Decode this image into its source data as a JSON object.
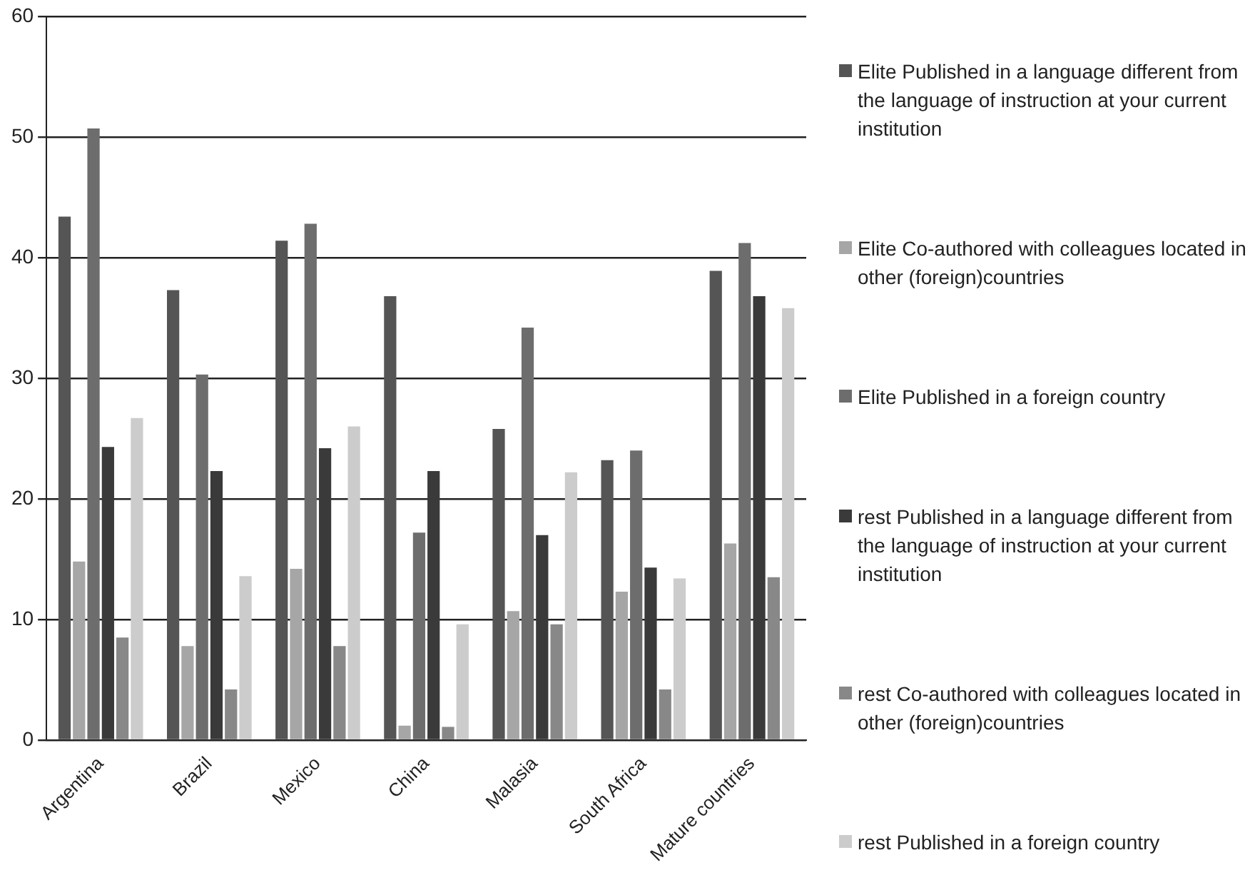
{
  "chart_data": {
    "type": "bar",
    "categories": [
      "Argentina",
      "Brazil",
      "Mexico",
      "China",
      "Malasia",
      "South Africa",
      "Mature countries"
    ],
    "series": [
      {
        "name": "Elite Published in a language different from the language of instruction at your current institution",
        "color": "#555555",
        "values": [
          43.4,
          37.3,
          41.4,
          36.8,
          25.8,
          23.2,
          38.9
        ]
      },
      {
        "name": "Elite Co-authored with colleagues located in other (foreign)countries",
        "color": "#a6a6a6",
        "values": [
          14.8,
          7.8,
          14.2,
          1.2,
          10.7,
          12.3,
          16.3
        ]
      },
      {
        "name": "Elite Published in a foreign country",
        "color": "#6d6d6d",
        "values": [
          50.7,
          30.3,
          42.8,
          17.2,
          34.2,
          24.0,
          41.2
        ]
      },
      {
        "name": "rest Published in a language different from the language of instruction at your current institution",
        "color": "#3a3a3a",
        "values": [
          24.3,
          22.3,
          24.2,
          22.3,
          17.0,
          14.3,
          36.8
        ]
      },
      {
        "name": "rest Co-authored with colleagues located in other (foreign)countries",
        "color": "#888888",
        "values": [
          8.5,
          4.2,
          7.8,
          1.1,
          9.6,
          4.2,
          13.5
        ]
      },
      {
        "name": "rest Published in a foreign country",
        "color": "#cccccc",
        "values": [
          26.7,
          13.6,
          26.0,
          9.6,
          22.2,
          13.4,
          35.8
        ]
      }
    ],
    "ylim": [
      0,
      60
    ],
    "yticks": [
      0,
      10,
      20,
      30,
      40,
      50,
      60
    ],
    "grid": "y",
    "legend": "right"
  }
}
